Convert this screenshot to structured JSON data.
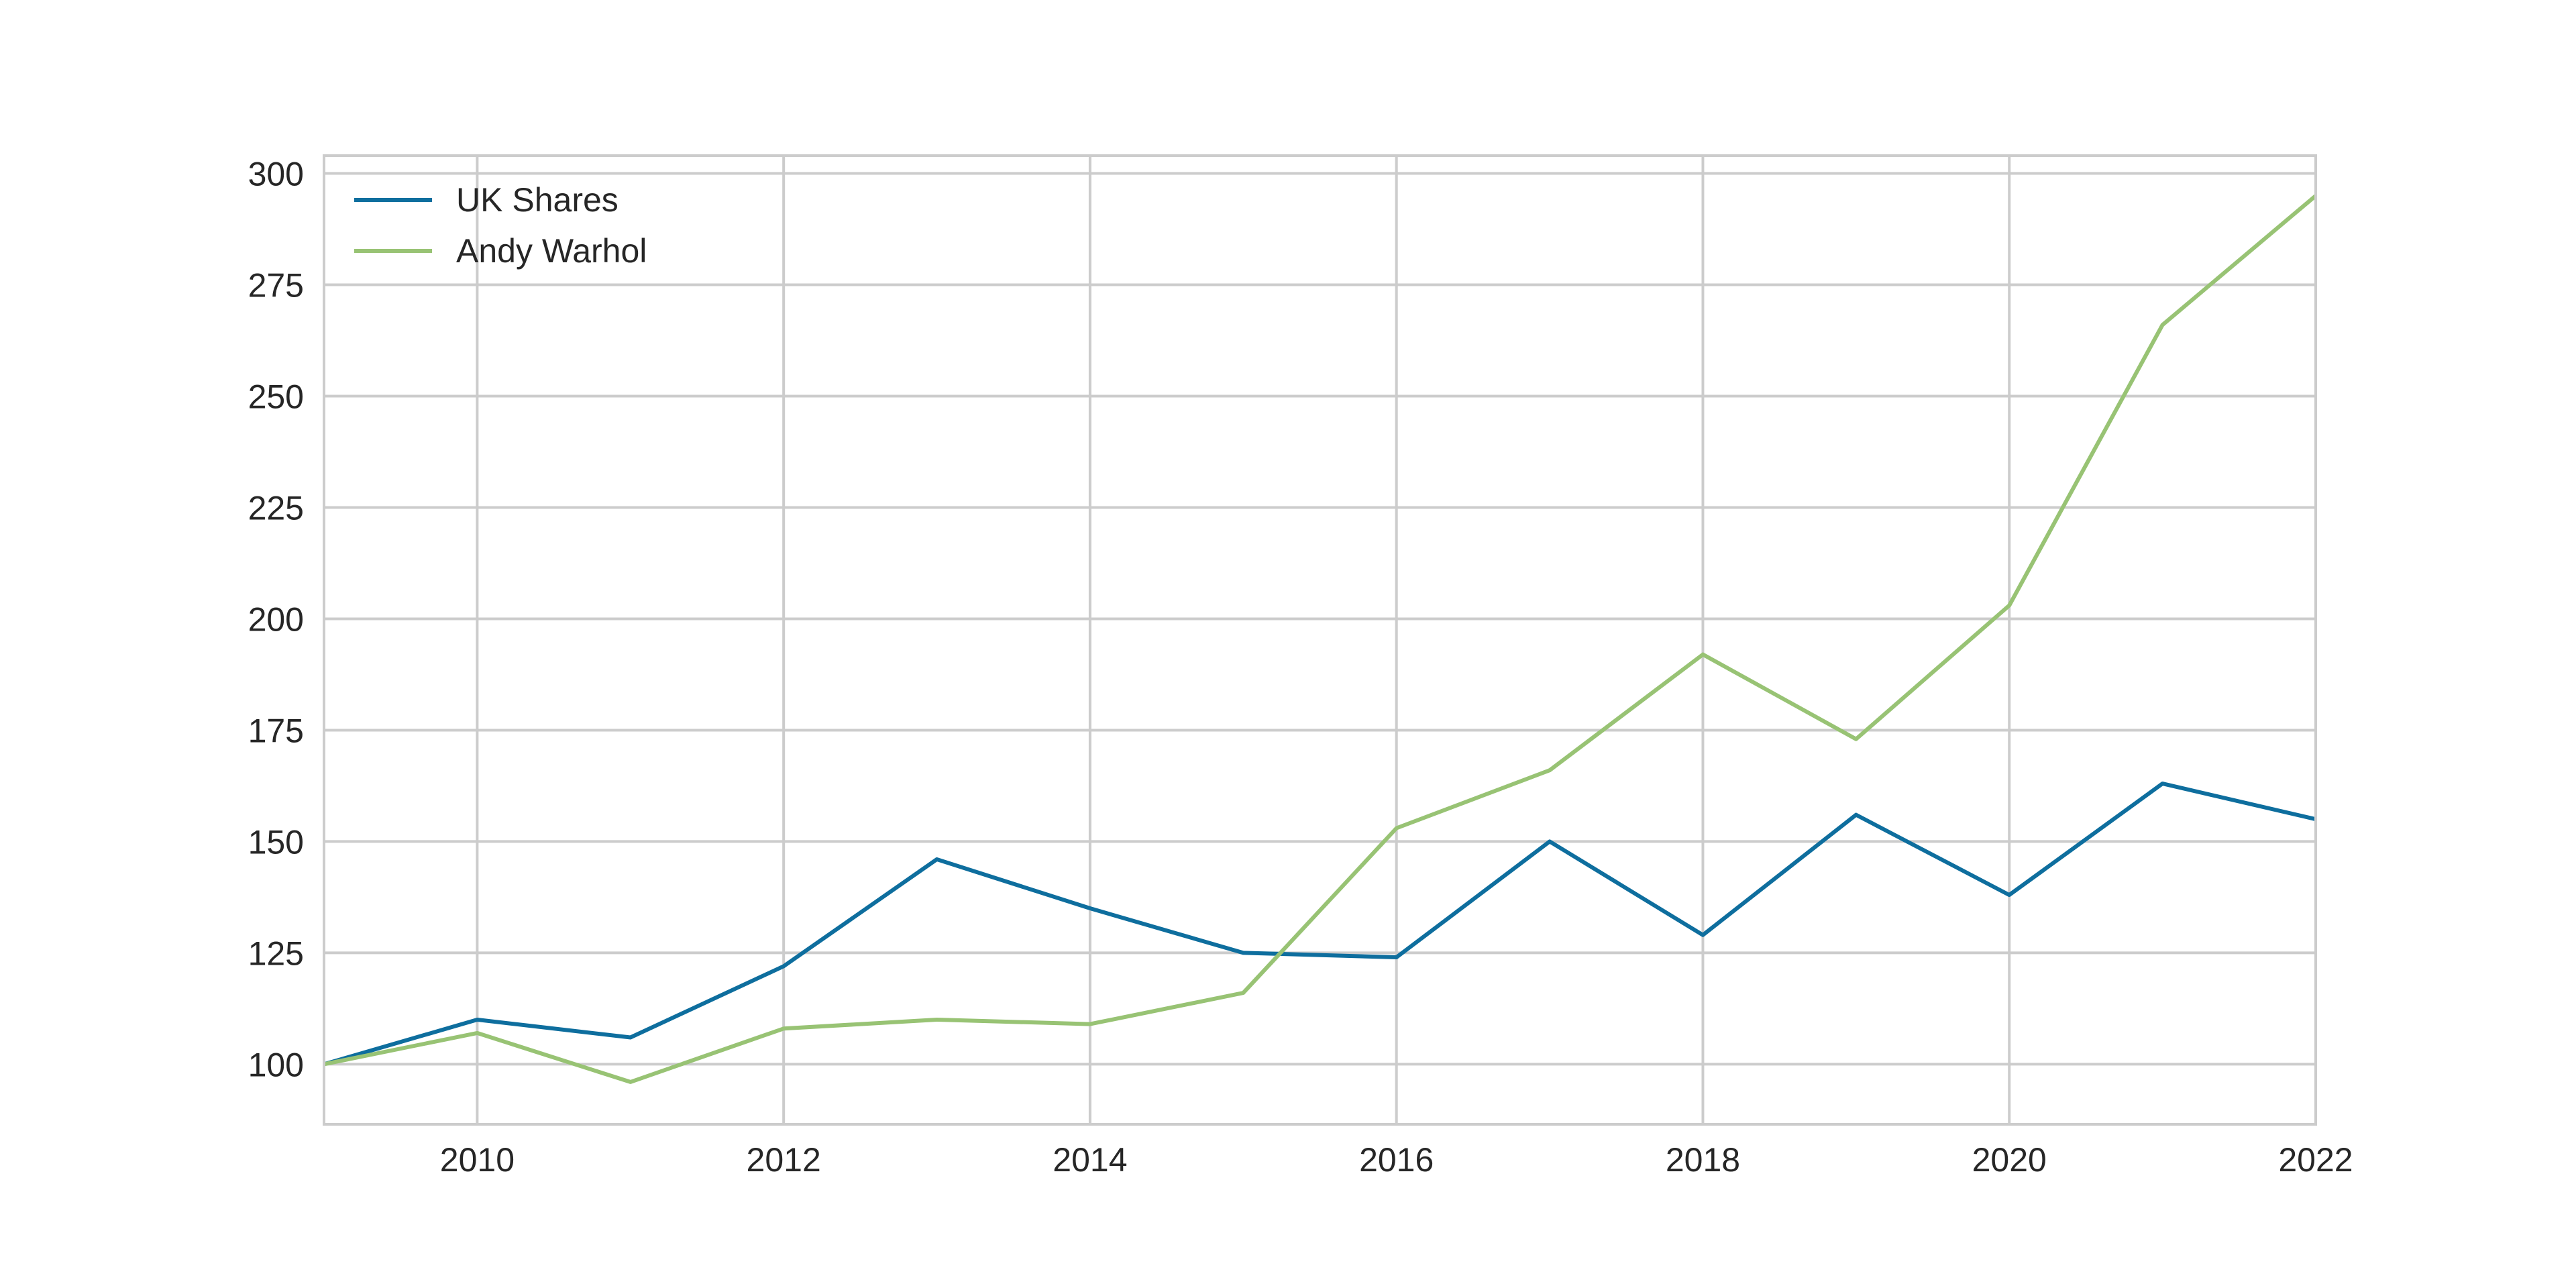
{
  "chart_data": {
    "type": "line",
    "x": [
      2009,
      2010,
      2011,
      2012,
      2013,
      2014,
      2015,
      2016,
      2017,
      2018,
      2019,
      2020,
      2021,
      2022
    ],
    "series": [
      {
        "name": "UK Shares",
        "color": "#0e6e9e",
        "values": [
          100,
          110,
          106,
          122,
          146,
          135,
          125,
          124,
          150,
          129,
          156,
          138,
          163,
          155
        ]
      },
      {
        "name": "Andy Warhol",
        "color": "#98c374",
        "values": [
          100,
          107,
          96,
          108,
          110,
          109,
          116,
          153,
          166,
          192,
          173,
          203,
          266,
          295
        ]
      }
    ],
    "xlim": [
      2009,
      2022
    ],
    "ylim": [
      86.5,
      304
    ],
    "xticks": [
      2010,
      2012,
      2014,
      2016,
      2018,
      2020,
      2022
    ],
    "yticks": [
      100,
      125,
      150,
      175,
      200,
      225,
      250,
      275,
      300
    ],
    "grid": true,
    "legend": "top-left",
    "title": "",
    "xlabel": "",
    "ylabel": ""
  }
}
